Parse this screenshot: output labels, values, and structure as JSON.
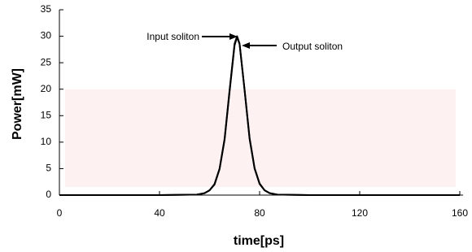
{
  "chart_data": {
    "type": "line",
    "x_label": "time[ps]",
    "y_label": "Power[mW]",
    "x": [
      0,
      40,
      55,
      58,
      60,
      62,
      64,
      66,
      68,
      70,
      71,
      72,
      74,
      76,
      78,
      80,
      82,
      84,
      87,
      100,
      160
    ],
    "series": [
      {
        "name": "Input soliton",
        "color": "#000000",
        "values": [
          0,
          0,
          0.1,
          0.37,
          0.9,
          2.1,
          5.0,
          10.6,
          19.8,
          28.6,
          30,
          28.6,
          19.8,
          10.6,
          5.0,
          2.1,
          0.9,
          0.37,
          0.1,
          0,
          0
        ]
      },
      {
        "name": "Output soliton",
        "color": "#000000",
        "values": [
          0,
          0,
          0.1,
          0.36,
          0.9,
          2.0,
          4.9,
          10.4,
          19.5,
          28.3,
          29.8,
          28.5,
          19.9,
          10.8,
          5.1,
          2.2,
          0.9,
          0.38,
          0.1,
          0,
          0
        ]
      }
    ],
    "xlim": [
      0,
      160
    ],
    "xticks": [
      0,
      40,
      80,
      120,
      160
    ],
    "ylim": [
      0,
      35
    ],
    "yticks": [
      0,
      5,
      10,
      15,
      20,
      25,
      30,
      35
    ]
  }
}
